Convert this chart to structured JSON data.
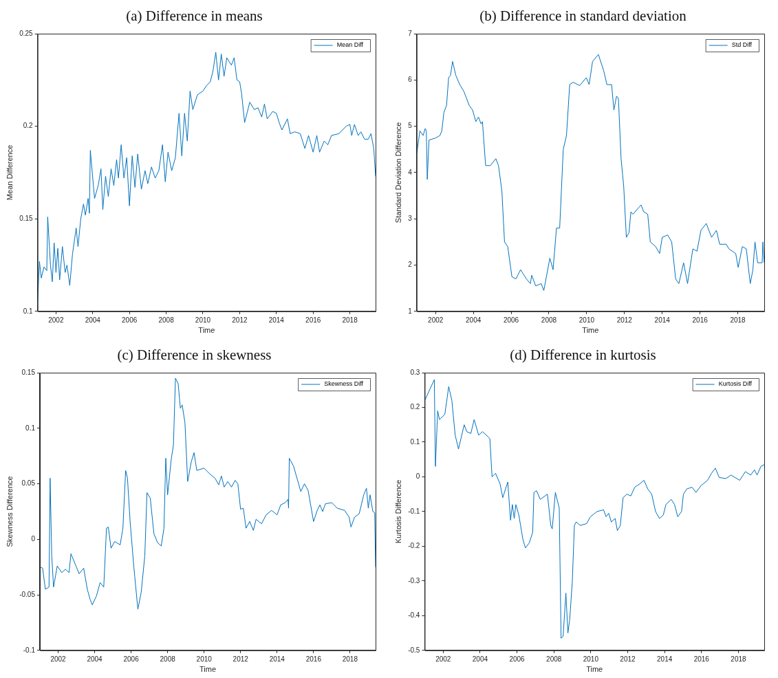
{
  "chart_data": [
    {
      "type": "line",
      "title": "(a) Difference in means",
      "xlabel": "Time",
      "ylabel": "Mean Difference",
      "xlim": [
        2001,
        2019.4
      ],
      "xticks": [
        2002,
        2004,
        2006,
        2008,
        2010,
        2012,
        2014,
        2016,
        2018
      ],
      "ylim": [
        0.1,
        0.25
      ],
      "yticks": [
        0.1,
        0.15,
        0.2,
        0.25
      ],
      "grid": false,
      "legend": "top right",
      "marker": "none",
      "series": [
        {
          "name": "Mean Diff",
          "color": "#0072bd",
          "x": [
            2001.0,
            2001.1,
            2001.2,
            2001.35,
            2001.5,
            2001.55,
            2001.7,
            2001.8,
            2001.9,
            2002.0,
            2002.1,
            2002.2,
            2002.35,
            2002.5,
            2002.6,
            2002.75,
            2002.9,
            2003.1,
            2003.2,
            2003.35,
            2003.5,
            2003.6,
            2003.75,
            2003.82,
            2003.87,
            2004.1,
            2004.3,
            2004.45,
            2004.55,
            2004.7,
            2004.85,
            2005.0,
            2005.15,
            2005.3,
            2005.4,
            2005.55,
            2005.7,
            2005.85,
            2006.0,
            2006.15,
            2006.3,
            2006.45,
            2006.65,
            2006.85,
            2007.0,
            2007.2,
            2007.4,
            2007.6,
            2007.8,
            2007.95,
            2008.1,
            2008.3,
            2008.5,
            2008.7,
            2008.85,
            2009.0,
            2009.15,
            2009.3,
            2009.45,
            2009.7,
            2010.0,
            2010.2,
            2010.4,
            2010.55,
            2010.7,
            2010.85,
            2011.0,
            2011.15,
            2011.3,
            2011.55,
            2011.7,
            2011.85,
            2012.0,
            2012.1,
            2012.27,
            2012.4,
            2012.55,
            2012.8,
            2013.0,
            2013.2,
            2013.35,
            2013.5,
            2013.8,
            2014.0,
            2014.15,
            2014.3,
            2014.6,
            2014.75,
            2015.0,
            2015.3,
            2015.55,
            2015.75,
            2016.0,
            2016.2,
            2016.35,
            2016.6,
            2016.8,
            2017.0,
            2017.4,
            2017.8,
            2018.0,
            2018.1,
            2018.25,
            2018.45,
            2018.6,
            2018.8,
            2019.0,
            2019.15,
            2019.3,
            2019.4
          ],
          "values": [
            0.105,
            0.127,
            0.118,
            0.124,
            0.122,
            0.151,
            0.125,
            0.116,
            0.137,
            0.121,
            0.134,
            0.117,
            0.135,
            0.121,
            0.125,
            0.114,
            0.131,
            0.145,
            0.135,
            0.15,
            0.158,
            0.152,
            0.161,
            0.153,
            0.187,
            0.161,
            0.168,
            0.177,
            0.155,
            0.173,
            0.162,
            0.177,
            0.168,
            0.182,
            0.172,
            0.19,
            0.172,
            0.183,
            0.157,
            0.184,
            0.167,
            0.185,
            0.166,
            0.176,
            0.169,
            0.178,
            0.172,
            0.176,
            0.19,
            0.17,
            0.186,
            0.176,
            0.183,
            0.207,
            0.184,
            0.207,
            0.192,
            0.219,
            0.209,
            0.217,
            0.219,
            0.222,
            0.224,
            0.23,
            0.24,
            0.225,
            0.239,
            0.227,
            0.237,
            0.233,
            0.237,
            0.225,
            0.224,
            0.218,
            0.202,
            0.207,
            0.213,
            0.209,
            0.21,
            0.205,
            0.212,
            0.204,
            0.208,
            0.207,
            0.202,
            0.198,
            0.204,
            0.196,
            0.197,
            0.196,
            0.188,
            0.195,
            0.186,
            0.195,
            0.186,
            0.192,
            0.19,
            0.195,
            0.196,
            0.2,
            0.201,
            0.195,
            0.201,
            0.195,
            0.197,
            0.193,
            0.193,
            0.196,
            0.188,
            0.173
          ]
        }
      ]
    },
    {
      "type": "line",
      "title": "(b) Difference in standard deviation",
      "xlabel": "Time",
      "ylabel": "Standard Deviation Difference",
      "xlim": [
        2001,
        2019.4
      ],
      "xticks": [
        2002,
        2004,
        2006,
        2008,
        2010,
        2012,
        2014,
        2016,
        2018
      ],
      "ylim": [
        1,
        7
      ],
      "yticks": [
        1,
        2,
        3,
        4,
        5,
        6,
        7
      ],
      "grid": false,
      "legend": "top right",
      "marker": "none",
      "series": [
        {
          "name": "Std Diff",
          "color": "#0072bd",
          "x": [
            2001.0,
            2001.17,
            2001.34,
            2001.45,
            2001.51,
            2001.56,
            2001.65,
            2002.02,
            2002.23,
            2002.33,
            2002.44,
            2002.58,
            2002.69,
            2002.79,
            2002.9,
            2003.07,
            2003.28,
            2003.5,
            2003.78,
            2003.96,
            2004.13,
            2004.27,
            2004.41,
            2004.48,
            2004.65,
            2004.9,
            2005.19,
            2005.33,
            2005.51,
            2005.65,
            2005.82,
            2006.04,
            2006.25,
            2006.5,
            2006.81,
            2007.02,
            2007.09,
            2007.3,
            2007.59,
            2007.73,
            2008.05,
            2008.22,
            2008.4,
            2008.57,
            2008.76,
            2008.93,
            2009.1,
            2009.28,
            2009.63,
            2009.98,
            2010.13,
            2010.31,
            2010.62,
            2010.9,
            2011.07,
            2011.32,
            2011.44,
            2011.58,
            2011.68,
            2011.82,
            2011.96,
            2012.1,
            2012.24,
            2012.34,
            2012.45,
            2012.88,
            2013.02,
            2013.23,
            2013.37,
            2013.65,
            2013.86,
            2014.0,
            2014.29,
            2014.5,
            2014.71,
            2014.88,
            2015.13,
            2015.34,
            2015.62,
            2015.84,
            2016.05,
            2016.33,
            2016.61,
            2016.87,
            2017.04,
            2017.39,
            2017.53,
            2017.89,
            2018.02,
            2018.24,
            2018.45,
            2018.66,
            2018.8,
            2018.91,
            2019.05,
            2019.29,
            2019.33,
            2019.4
          ],
          "values": [
            4.4,
            4.9,
            4.8,
            4.95,
            4.9,
            3.85,
            4.7,
            4.75,
            4.8,
            4.9,
            5.3,
            5.45,
            6.05,
            6.1,
            6.4,
            6.1,
            5.9,
            5.75,
            5.45,
            5.35,
            5.1,
            5.2,
            5.05,
            5.1,
            4.15,
            4.15,
            4.3,
            4.15,
            3.6,
            2.5,
            2.4,
            1.75,
            1.7,
            1.9,
            1.7,
            1.6,
            1.78,
            1.55,
            1.6,
            1.45,
            2.15,
            1.9,
            2.8,
            2.8,
            4.5,
            4.8,
            5.9,
            5.95,
            5.88,
            6.05,
            5.9,
            6.4,
            6.55,
            6.2,
            5.9,
            5.9,
            5.35,
            5.65,
            5.6,
            4.3,
            3.7,
            2.6,
            2.7,
            3.15,
            3.1,
            3.3,
            3.15,
            3.1,
            2.5,
            2.4,
            2.25,
            2.6,
            2.65,
            2.5,
            1.7,
            1.6,
            2.05,
            1.6,
            2.35,
            2.3,
            2.75,
            2.9,
            2.6,
            2.75,
            2.45,
            2.45,
            2.35,
            2.25,
            1.95,
            2.4,
            2.35,
            1.6,
            1.9,
            2.5,
            2.05,
            2.05,
            2.5,
            2.05
          ]
        }
      ]
    },
    {
      "type": "line",
      "title": "(c) Difference in skewness",
      "xlabel": "Time",
      "ylabel": "Skewness Difference",
      "xlim": [
        2001,
        2019.4
      ],
      "xticks": [
        2002,
        2004,
        2006,
        2008,
        2010,
        2012,
        2014,
        2016,
        2018
      ],
      "ylim": [
        -0.1,
        0.15
      ],
      "yticks": [
        -0.1,
        -0.05,
        0,
        0.05,
        0.1,
        0.15
      ],
      "grid": false,
      "legend": "top right",
      "marker": "none",
      "series": [
        {
          "name": "Skewness Diff",
          "color": "#0072bd",
          "x": [
            2001.0,
            2001.15,
            2001.3,
            2001.5,
            2001.56,
            2001.65,
            2001.75,
            2001.95,
            2002.2,
            2002.4,
            2002.6,
            2002.7,
            2003.0,
            2003.15,
            2003.4,
            2003.6,
            2003.75,
            2003.87,
            2004.1,
            2004.3,
            2004.5,
            2004.65,
            2004.75,
            2004.9,
            2005.1,
            2005.4,
            2005.55,
            2005.7,
            2005.8,
            2005.95,
            2006.15,
            2006.37,
            2006.55,
            2006.75,
            2006.87,
            2007.05,
            2007.25,
            2007.45,
            2007.65,
            2007.8,
            2007.9,
            2008.0,
            2008.2,
            2008.32,
            2008.43,
            2008.58,
            2008.7,
            2008.8,
            2008.95,
            2009.1,
            2009.3,
            2009.45,
            2009.6,
            2010.0,
            2010.3,
            2010.6,
            2010.8,
            2010.95,
            2011.1,
            2011.3,
            2011.5,
            2011.7,
            2011.85,
            2012.0,
            2012.15,
            2012.3,
            2012.5,
            2012.7,
            2012.85,
            2013.15,
            2013.4,
            2013.7,
            2014.0,
            2014.2,
            2014.45,
            2014.6,
            2014.63,
            2014.67,
            2014.9,
            2015.3,
            2015.5,
            2015.7,
            2015.85,
            2016.0,
            2016.2,
            2016.35,
            2016.5,
            2016.65,
            2017.0,
            2017.3,
            2017.7,
            2017.95,
            2018.05,
            2018.25,
            2018.5,
            2018.75,
            2018.9,
            2019.0,
            2019.1,
            2019.25,
            2019.35,
            2019.4
          ],
          "values": [
            -0.025,
            -0.026,
            -0.045,
            -0.043,
            0.055,
            -0.015,
            -0.043,
            -0.024,
            -0.03,
            -0.027,
            -0.03,
            -0.013,
            -0.025,
            -0.031,
            -0.026,
            -0.045,
            -0.054,
            -0.059,
            -0.051,
            -0.039,
            -0.043,
            0.01,
            0.011,
            -0.008,
            -0.002,
            -0.005,
            0.01,
            0.062,
            0.055,
            0.015,
            -0.025,
            -0.063,
            -0.048,
            -0.015,
            0.042,
            0.037,
            0.005,
            -0.003,
            -0.006,
            0.01,
            0.073,
            0.04,
            0.072,
            0.085,
            0.145,
            0.14,
            0.118,
            0.121,
            0.105,
            0.052,
            0.07,
            0.078,
            0.062,
            0.064,
            0.059,
            0.055,
            0.049,
            0.057,
            0.047,
            0.052,
            0.047,
            0.053,
            0.05,
            0.027,
            0.028,
            0.01,
            0.016,
            0.008,
            0.018,
            0.014,
            0.022,
            0.026,
            0.022,
            0.031,
            0.033,
            0.036,
            0.028,
            0.073,
            0.066,
            0.043,
            0.05,
            0.044,
            0.03,
            0.016,
            0.026,
            0.031,
            0.025,
            0.032,
            0.033,
            0.028,
            0.026,
            0.02,
            0.011,
            0.02,
            0.023,
            0.04,
            0.046,
            0.028,
            0.04,
            0.025,
            0.024,
            -0.025
          ]
        }
      ]
    },
    {
      "type": "line",
      "title": "(d) Difference in kurtosis",
      "xlabel": "Time",
      "ylabel": "Kurtosis Difference",
      "xlim": [
        2001,
        2019.4
      ],
      "xticks": [
        2002,
        2004,
        2006,
        2008,
        2010,
        2012,
        2014,
        2016,
        2018
      ],
      "ylim": [
        -0.5,
        0.3
      ],
      "yticks": [
        -0.5,
        -0.4,
        -0.3,
        -0.2,
        -0.1,
        0,
        0.1,
        0.2,
        0.3
      ],
      "grid": false,
      "legend": "top right",
      "marker": "none",
      "series": [
        {
          "name": "Kurtosis Diff",
          "color": "#0072bd",
          "x": [
            2001.0,
            2001.52,
            2001.58,
            2001.7,
            2001.8,
            2002.09,
            2002.3,
            2002.47,
            2002.65,
            2002.83,
            2003.14,
            2003.28,
            2003.5,
            2003.68,
            2003.92,
            2004.13,
            2004.34,
            2004.53,
            2004.65,
            2004.84,
            2005.08,
            2005.23,
            2005.5,
            2005.65,
            2005.75,
            2005.85,
            2005.94,
            2006.1,
            2006.32,
            2006.46,
            2006.67,
            2006.85,
            2006.92,
            2007.06,
            2007.26,
            2007.65,
            2007.83,
            2007.91,
            2008.08,
            2008.29,
            2008.39,
            2008.5,
            2008.65,
            2008.76,
            2008.86,
            2009.0,
            2009.11,
            2009.21,
            2009.42,
            2009.77,
            2009.98,
            2010.34,
            2010.69,
            2010.83,
            2010.97,
            2011.11,
            2011.32,
            2011.44,
            2011.6,
            2011.75,
            2011.96,
            2012.17,
            2012.38,
            2012.66,
            2012.88,
            2013.09,
            2013.3,
            2013.51,
            2013.72,
            2013.93,
            2014.07,
            2014.36,
            2014.54,
            2014.71,
            2014.92,
            2015.02,
            2015.2,
            2015.49,
            2015.7,
            2015.98,
            2016.33,
            2016.54,
            2016.75,
            2016.96,
            2017.32,
            2017.6,
            2018.07,
            2018.38,
            2018.66,
            2018.87,
            2019.01,
            2019.22,
            2019.4
          ],
          "values": [
            0.22,
            0.28,
            0.03,
            0.19,
            0.165,
            0.18,
            0.26,
            0.22,
            0.12,
            0.08,
            0.15,
            0.13,
            0.125,
            0.165,
            0.12,
            0.13,
            0.12,
            0.11,
            0.0,
            0.01,
            -0.02,
            -0.06,
            -0.015,
            -0.125,
            -0.08,
            -0.12,
            -0.08,
            -0.11,
            -0.18,
            -0.205,
            -0.19,
            -0.16,
            -0.045,
            -0.04,
            -0.065,
            -0.05,
            -0.14,
            -0.15,
            -0.045,
            -0.09,
            -0.465,
            -0.46,
            -0.335,
            -0.45,
            -0.41,
            -0.3,
            -0.14,
            -0.13,
            -0.14,
            -0.135,
            -0.115,
            -0.1,
            -0.095,
            -0.115,
            -0.105,
            -0.13,
            -0.12,
            -0.155,
            -0.14,
            -0.06,
            -0.05,
            -0.055,
            -0.03,
            -0.02,
            -0.01,
            -0.035,
            -0.05,
            -0.1,
            -0.12,
            -0.11,
            -0.08,
            -0.065,
            -0.08,
            -0.115,
            -0.1,
            -0.05,
            -0.035,
            -0.03,
            -0.045,
            -0.025,
            -0.01,
            0.01,
            0.025,
            -0.002,
            -0.005,
            0.005,
            -0.01,
            0.015,
            0.005,
            0.02,
            0.005,
            0.03,
            0.035
          ]
        }
      ]
    }
  ]
}
